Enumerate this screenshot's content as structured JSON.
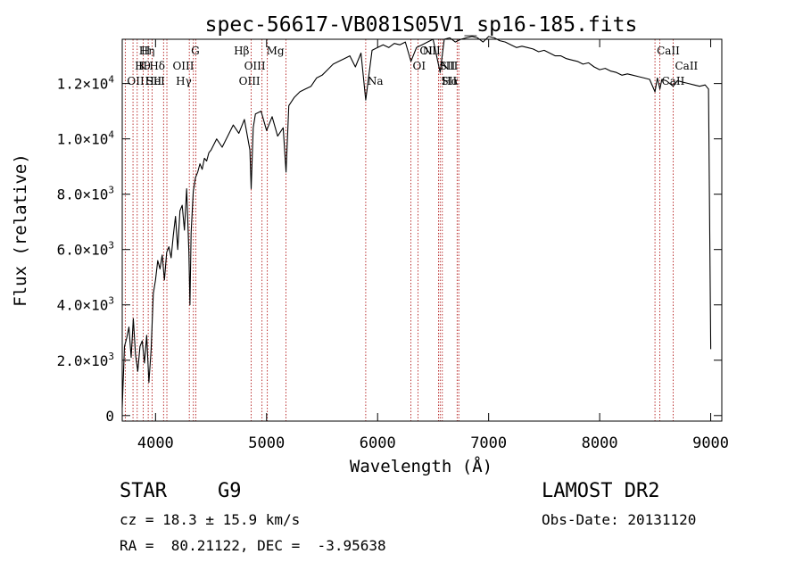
{
  "chart_data": {
    "type": "line",
    "title": "spec-56617-VB081S05V1_sp16-185.fits",
    "xlabel": "Wavelength (Å)",
    "ylabel": "Flux (relative)",
    "xlim": [
      3700,
      9100
    ],
    "ylim": [
      -200,
      13600
    ],
    "xticks": [
      4000,
      5000,
      6000,
      7000,
      8000,
      9000
    ],
    "xtick_labels": [
      "4000",
      "5000",
      "6000",
      "7000",
      "8000",
      "9000"
    ],
    "yticks": [
      0,
      2000,
      4000,
      6000,
      8000,
      10000,
      12000
    ],
    "ytick_labels": [
      {
        "mantissa": "0",
        "exp": ""
      },
      {
        "mantissa": "2.0×10",
        "exp": "3"
      },
      {
        "mantissa": "4.0×10",
        "exp": "3"
      },
      {
        "mantissa": "6.0×10",
        "exp": "3"
      },
      {
        "mantissa": "8.0×10",
        "exp": "3"
      },
      {
        "mantissa": "1.0×10",
        "exp": "4"
      },
      {
        "mantissa": "1.2×10",
        "exp": "4"
      }
    ],
    "grid": false,
    "line_color": "#000000",
    "marker_line_color": "#aa0000",
    "series": [
      {
        "x": [
          3700,
          3720,
          3740,
          3760,
          3780,
          3800,
          3820,
          3840,
          3860,
          3880,
          3900,
          3920,
          3940,
          3960,
          3980,
          4000,
          4020,
          4040,
          4060,
          4080,
          4100,
          4120,
          4140,
          4160,
          4180,
          4200,
          4220,
          4240,
          4260,
          4280,
          4300,
          4310,
          4320,
          4340,
          4360,
          4380,
          4400,
          4420,
          4440,
          4460,
          4480,
          4500,
          4550,
          4600,
          4650,
          4700,
          4750,
          4800,
          4850,
          4861,
          4880,
          4900,
          4950,
          5000,
          5050,
          5100,
          5150,
          5175,
          5200,
          5250,
          5300,
          5350,
          5400,
          5450,
          5500,
          5550,
          5600,
          5650,
          5700,
          5750,
          5800,
          5850,
          5893,
          5950,
          6000,
          6050,
          6100,
          6150,
          6200,
          6250,
          6300,
          6350,
          6400,
          6450,
          6500,
          6563,
          6600,
          6650,
          6700,
          6750,
          6800,
          6850,
          6900,
          6950,
          7000,
          7050,
          7100,
          7150,
          7200,
          7250,
          7300,
          7350,
          7400,
          7450,
          7500,
          7550,
          7600,
          7650,
          7700,
          7750,
          7800,
          7850,
          7900,
          7950,
          8000,
          8050,
          8100,
          8150,
          8200,
          8250,
          8300,
          8350,
          8400,
          8450,
          8498,
          8520,
          8542,
          8560,
          8600,
          8662,
          8700,
          8750,
          8800,
          8850,
          8900,
          8950,
          8980,
          9000
        ],
        "values": [
          300,
          2500,
          2800,
          3200,
          2100,
          3500,
          2200,
          1600,
          2500,
          2700,
          1900,
          2900,
          1200,
          2400,
          4400,
          4900,
          5600,
          5300,
          5800,
          4900,
          5900,
          6100,
          5700,
          6500,
          7200,
          6000,
          7400,
          7600,
          6700,
          8200,
          5900,
          4000,
          6600,
          8100,
          8600,
          8800,
          9100,
          8900,
          9300,
          9200,
          9500,
          9600,
          10000,
          9700,
          10100,
          10500,
          10200,
          10700,
          9600,
          8200,
          10400,
          10900,
          11000,
          10300,
          10800,
          10100,
          10400,
          8800,
          11200,
          11500,
          11700,
          11800,
          11900,
          12200,
          12300,
          12500,
          12700,
          12800,
          12900,
          13000,
          12600,
          13100,
          11400,
          13200,
          13300,
          13400,
          13300,
          13450,
          13400,
          13500,
          12800,
          13300,
          13400,
          13500,
          13600,
          12400,
          13600,
          13650,
          13500,
          13600,
          13650,
          13700,
          13650,
          13500,
          13700,
          13650,
          13550,
          13500,
          13400,
          13300,
          13350,
          13300,
          13250,
          13150,
          13200,
          13100,
          13000,
          13000,
          12900,
          12850,
          12800,
          12700,
          12750,
          12600,
          12500,
          12550,
          12450,
          12400,
          12300,
          12350,
          12300,
          12250,
          12200,
          12150,
          11700,
          12200,
          11800,
          12150,
          12100,
          11900,
          12100,
          12050,
          12000,
          11950,
          11900,
          11950,
          11800,
          2400
        ]
      }
    ],
    "lines": [
      {
        "label": "Hη",
        "x": 3835,
        "row": 0,
        "side": "right"
      },
      {
        "label": "H",
        "x": 3969,
        "row": 0,
        "side": "left"
      },
      {
        "label": "Hθ",
        "x": 3797,
        "row": 1,
        "side": "right"
      },
      {
        "label": "K",
        "x": 3934,
        "row": 1,
        "side": "left"
      },
      {
        "label": "Hδ",
        "x": 4102,
        "row": 1,
        "side": "left"
      },
      {
        "label": "OII",
        "x": 3727,
        "row": 2,
        "side": "right"
      },
      {
        "label": "HeI",
        "x": 3889,
        "row": 2,
        "side": "right"
      },
      {
        "label": "SII",
        "x": 4072,
        "row": 2,
        "side": "left"
      },
      {
        "label": "G",
        "x": 4304,
        "row": 0,
        "side": "right"
      },
      {
        "label": "OIII",
        "x": 4363,
        "row": 1,
        "side": "left"
      },
      {
        "label": "Hγ",
        "x": 4341,
        "row": 2,
        "side": "left"
      },
      {
        "label": "Hβ",
        "x": 4861,
        "row": 0,
        "side": "left"
      },
      {
        "label": "Mg",
        "x": 5175,
        "row": 0,
        "side": "left"
      },
      {
        "label": "OIII",
        "x": 5007,
        "row": 1,
        "side": "left"
      },
      {
        "label": "OIII",
        "x": 4959,
        "row": 2,
        "side": "left"
      },
      {
        "label": "Na",
        "x": 5893,
        "row": 2,
        "side": "right"
      },
      {
        "label": "OI",
        "x": 6300,
        "row": 1,
        "side": "right"
      },
      {
        "label": "OI",
        "x": 6363,
        "row": 0,
        "side": "right"
      },
      {
        "label": "NII",
        "x": 6583,
        "row": 0,
        "side": "left"
      },
      {
        "label": "NII",
        "x": 6548,
        "row": 1,
        "side": "right"
      },
      {
        "label": "SII",
        "x": 6716,
        "row": 1,
        "side": "left"
      },
      {
        "label": "Hα",
        "x": 6563,
        "row": 2,
        "side": "right"
      },
      {
        "label": "SII",
        "x": 6731,
        "row": 2,
        "side": "left"
      },
      {
        "label": "CaII",
        "x": 8498,
        "row": 0,
        "side": "right"
      },
      {
        "label": "CaII",
        "x": 8662,
        "row": 1,
        "side": "right"
      },
      {
        "label": "CaII",
        "x": 8542,
        "row": 2,
        "side": "right"
      }
    ]
  },
  "info": {
    "class_label": "STAR",
    "subclass": "G9",
    "survey": "LAMOST DR2",
    "cz": "cz = 18.3 ± 15.9 km/s",
    "obs_date": "Obs-Date: 20131120",
    "coords": "RA =  80.21122, DEC =  -3.95638"
  }
}
